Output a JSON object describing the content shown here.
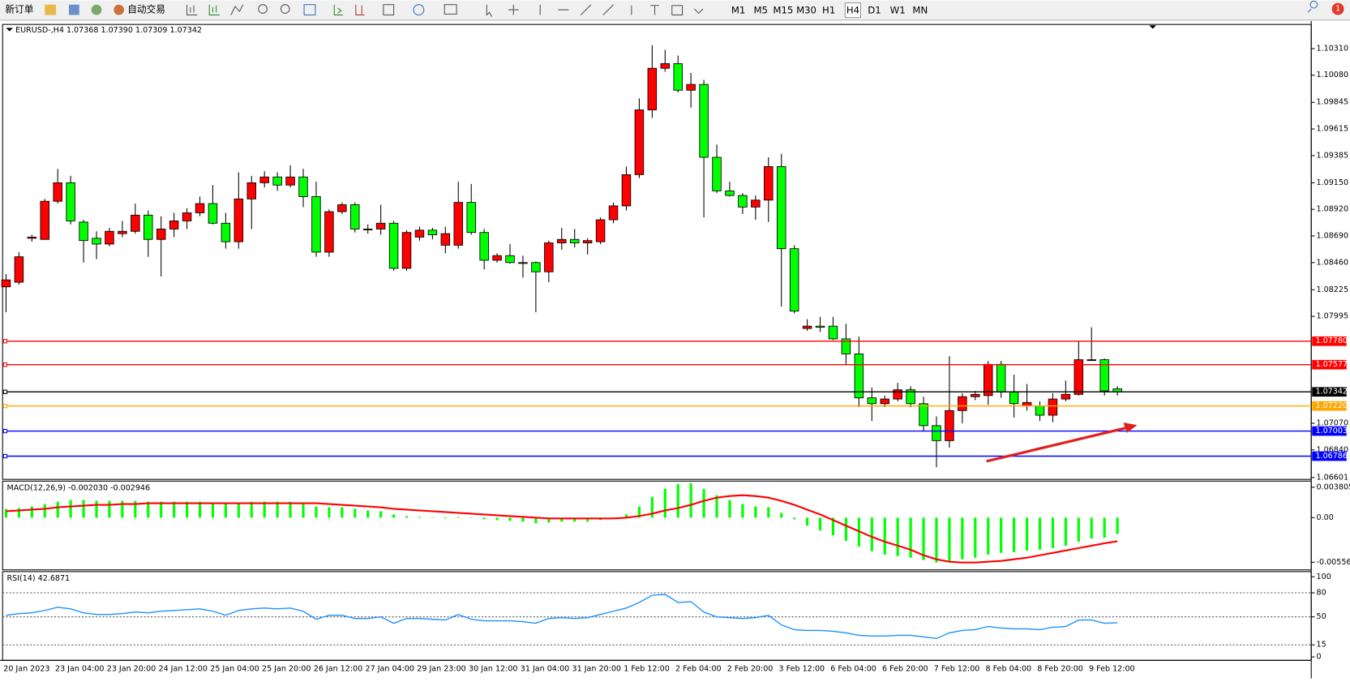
{
  "toolbar": {
    "new_order": "新订单",
    "auto_trade": "自动交易",
    "timeframes": [
      "M1",
      "M5",
      "M15",
      "M30",
      "H1",
      "H4",
      "D1",
      "W1",
      "MN"
    ],
    "active_timeframe": "H4",
    "notifications": "1"
  },
  "chart_data": [
    {
      "type": "candlestick",
      "title": "EURUSD-,H4  1.07368 1.07390 1.07309 1.07342",
      "categories": [
        "20 Jan 2023",
        null,
        null,
        null,
        "23 Jan 04:00",
        null,
        null,
        null,
        "23 Jan 20:00",
        null,
        null,
        null,
        "24 Jan 12:00",
        null,
        null,
        null,
        "25 Jan 04:00",
        null,
        null,
        null,
        "25 Jan 20:00",
        null,
        null,
        null,
        "26 Jan 12:00",
        null,
        null,
        null,
        "27 Jan 04:00",
        null,
        null,
        null,
        "29 Jan 23:00",
        null,
        null,
        null,
        "30 Jan 12:00",
        null,
        null,
        null,
        "31 Jan 04:00",
        null,
        null,
        null,
        "31 Jan 20:00",
        null,
        null,
        null,
        "1 Feb 12:00",
        null,
        null,
        null,
        "2 Feb 04:00",
        null,
        null,
        null,
        "2 Feb 20:00",
        null,
        null,
        null,
        "3 Feb 12:00",
        null,
        null,
        null,
        "6 Feb 04:00",
        null,
        null,
        null,
        "6 Feb 20:00",
        null,
        null,
        null,
        "7 Feb 12:00",
        null,
        null,
        null,
        "8 Feb 04:00",
        null,
        null,
        null,
        "8 Feb 20:00",
        null,
        null,
        null,
        "9 Feb 12:00",
        null,
        null
      ],
      "open": [
        1.0825,
        1.0829,
        1.0867,
        1.0866,
        1.0899,
        1.0915,
        1.0881,
        1.0867,
        1.0862,
        1.0871,
        1.0873,
        1.0887,
        1.0866,
        1.0875,
        1.0882,
        1.0889,
        1.0897,
        1.088,
        1.0864,
        1.0901,
        1.0915,
        1.092,
        1.0913,
        1.092,
        1.0903,
        1.0855,
        1.089,
        1.0896,
        1.0875,
        1.0875,
        1.088,
        1.0841,
        1.0868,
        1.0874,
        1.0861,
        1.0861,
        1.0898,
        1.0872,
        1.0848,
        1.0852,
        1.0846,
        1.0846,
        1.0838,
        1.0863,
        1.0866,
        1.0863,
        1.0864,
        1.0883,
        1.0895,
        1.0922,
        1.0978,
        1.1014,
        1.1018,
        1.0995,
        1.1,
        1.0937,
        1.0908,
        1.0904,
        1.0894,
        1.09,
        1.0929,
        1.0858,
        1.0789,
        1.0791,
        1.0791,
        1.078,
        1.0767,
        1.0729,
        1.0724,
        1.0728,
        1.0736,
        1.0724,
        1.0705,
        1.0692,
        1.0718,
        1.073,
        1.0731,
        1.0758,
        1.0734,
        1.0722,
        1.0722,
        1.0714,
        1.0728,
        1.0732,
        1.0762,
        1.0762,
        1.07368
      ],
      "high": [
        1.0836,
        1.0855,
        1.087,
        1.0901,
        1.0927,
        1.0921,
        1.0883,
        1.0873,
        1.0876,
        1.0882,
        1.0897,
        1.0891,
        1.0886,
        1.0889,
        1.0893,
        1.0903,
        1.0913,
        1.0889,
        1.0924,
        1.0921,
        1.0925,
        1.0924,
        1.093,
        1.0927,
        1.0916,
        1.0892,
        1.0898,
        1.0898,
        1.0879,
        1.0896,
        1.0882,
        1.0874,
        1.0877,
        1.0876,
        1.0877,
        1.0916,
        1.0914,
        1.0875,
        1.0854,
        1.0862,
        1.0852,
        1.0847,
        1.0865,
        1.0876,
        1.0875,
        1.0867,
        1.0885,
        1.0898,
        1.0929,
        1.0988,
        1.1034,
        1.103,
        1.1025,
        1.101,
        1.1004,
        1.0948,
        1.0916,
        1.0906,
        1.0904,
        1.0937,
        1.094,
        1.0861,
        1.0797,
        1.0799,
        1.0799,
        1.0793,
        1.0782,
        1.0738,
        1.0731,
        1.0742,
        1.0739,
        1.073,
        1.0713,
        1.0765,
        1.0733,
        1.0735,
        1.0761,
        1.0761,
        1.0749,
        1.0741,
        1.0726,
        1.0733,
        1.0744,
        1.0778,
        1.079,
        1.0763,
        1.0739
      ],
      "low": [
        1.0803,
        1.0827,
        1.0864,
        1.0866,
        1.0897,
        1.0879,
        1.0846,
        1.0849,
        1.086,
        1.0868,
        1.0871,
        1.0851,
        1.0834,
        1.0868,
        1.0875,
        1.0886,
        1.0879,
        1.0858,
        1.0858,
        1.0875,
        1.0911,
        1.0908,
        1.0911,
        1.0894,
        1.0851,
        1.0851,
        1.0888,
        1.0872,
        1.0871,
        1.087,
        1.0839,
        1.0839,
        1.0865,
        1.0866,
        1.0854,
        1.0858,
        1.087,
        1.084,
        1.0846,
        1.0845,
        1.0833,
        1.0803,
        1.0829,
        1.0857,
        1.0859,
        1.0853,
        1.0862,
        1.088,
        1.0891,
        1.0919,
        1.0971,
        1.1011,
        1.0993,
        1.098,
        1.0885,
        1.0906,
        1.0903,
        1.0888,
        1.0883,
        1.0881,
        1.0808,
        1.0802,
        1.0787,
        1.0786,
        1.0779,
        1.0758,
        1.0721,
        1.0709,
        1.0721,
        1.0726,
        1.0721,
        1.07,
        1.0669,
        1.0686,
        1.0707,
        1.0727,
        1.0723,
        1.0729,
        1.0712,
        1.0718,
        1.0709,
        1.0708,
        1.0726,
        1.0731,
        1.0761,
        1.0731,
        1.07309
      ],
      "close": [
        1.0831,
        1.0851,
        1.0868,
        1.0899,
        1.0915,
        1.0882,
        1.0865,
        1.0862,
        1.0873,
        1.0873,
        1.0887,
        1.0866,
        1.0875,
        1.0882,
        1.0889,
        1.0897,
        1.088,
        1.0864,
        1.0901,
        1.0915,
        1.092,
        1.0913,
        1.092,
        1.0903,
        1.0855,
        1.089,
        1.0896,
        1.0875,
        1.0875,
        1.088,
        1.0841,
        1.0872,
        1.0874,
        1.087,
        1.0871,
        1.0898,
        1.0872,
        1.0848,
        1.0852,
        1.0846,
        1.0846,
        1.0838,
        1.0863,
        1.0866,
        1.0863,
        1.0865,
        1.0883,
        1.0895,
        1.0922,
        1.0978,
        1.1014,
        1.1018,
        1.0995,
        1.1,
        1.0937,
        1.0908,
        1.0904,
        1.0894,
        1.09,
        1.0929,
        1.0858,
        1.0804,
        1.0791,
        1.079,
        1.078,
        1.0767,
        1.0729,
        1.0724,
        1.0728,
        1.0736,
        1.0724,
        1.0705,
        1.0692,
        1.0718,
        1.073,
        1.0732,
        1.0758,
        1.0734,
        1.0724,
        1.0725,
        1.0714,
        1.0728,
        1.0732,
        1.0762,
        1.0762,
        1.0735,
        1.07342
      ],
      "up_color": "#ff0000",
      "down_color": "#00ff00",
      "ylim": [
        1.06585,
        1.10519
      ],
      "yticks": [
        {
          "value": 1.1031,
          "label": "1.10310"
        },
        {
          "value": 1.1008,
          "label": "1.10080"
        },
        1.09845,
        {
          "value": 1.09615,
          "label": "1.09615"
        },
        1.09385,
        {
          "value": 1.0915,
          "label": "1.09150"
        },
        {
          "value": 1.0892,
          "label": "1.08920"
        },
        {
          "value": 1.0869,
          "label": "1.08690"
        },
        {
          "value": 1.0846,
          "label": "1.08460"
        },
        1.08225,
        1.07995,
        {
          "value": 1.0707,
          "label": "1.07070"
        },
        {
          "value": 1.0684,
          "label": "1.06840"
        },
        1.06601
      ],
      "hlines": [
        {
          "value": 1.0778,
          "label": "1.07780",
          "color": "#ff0000"
        },
        {
          "value": 1.07577,
          "label": "1.07577",
          "color": "#ff0000"
        },
        {
          "value": 1.0722,
          "label": "1.07220",
          "color": "#ffa500"
        },
        {
          "value": 1.07003,
          "label": "1.07003",
          "color": "#0000ff"
        },
        {
          "value": 1.06786,
          "label": "1.06786",
          "color": "#0000ff"
        }
      ],
      "current": {
        "value": 1.07342,
        "label": "1.07342",
        "color": "#000000"
      }
    },
    {
      "type": "macd",
      "title": "MACD(12,26,9) -0.002030 -0.002946",
      "series": [
        {
          "color": "#00ff00",
          "values": [
            0.0011,
            0.0012,
            0.0014,
            0.0017,
            0.002,
            0.0022,
            0.0022,
            0.0021,
            0.0021,
            0.0021,
            0.0021,
            0.002,
            0.002,
            0.002,
            0.002,
            0.002,
            0.0019,
            0.0018,
            0.0019,
            0.002,
            0.002,
            0.002,
            0.002,
            0.0019,
            0.0014,
            0.0013,
            0.0013,
            0.0011,
            0.0009,
            0.0008,
            0.0004,
            0.0002,
            0.0001,
            0,
            -0.0001,
            0.0001,
            0,
            -0.0002,
            -0.0003,
            -0.0004,
            -0.0005,
            -0.0007,
            -0.0006,
            -0.0005,
            -0.0005,
            -0.0005,
            -0.0003,
            -0.0001,
            0.0004,
            0.0014,
            0.0026,
            0.0036,
            0.0042,
            0.0043,
            0.0036,
            0.0028,
            0.0022,
            0.0017,
            0.0014,
            0.0013,
            0.0006,
            -0.0002,
            -0.001,
            -0.0016,
            -0.0022,
            -0.0029,
            -0.0036,
            -0.0042,
            -0.0046,
            -0.0048,
            -0.005,
            -0.0053,
            -0.0056,
            -0.0055,
            -0.0052,
            -0.005,
            -0.0046,
            -0.0044,
            -0.0043,
            -0.0041,
            -0.004,
            -0.0038,
            -0.0035,
            -0.003,
            -0.0026,
            -0.0025,
            -0.00203
          ]
        },
        {
          "color": "#ff0000",
          "values": [
            0.0008,
            0.0009,
            0.001,
            0.0011,
            0.0013,
            0.0014,
            0.0015,
            0.0016,
            0.0016,
            0.0017,
            0.0017,
            0.0018,
            0.0018,
            0.0018,
            0.0018,
            0.0018,
            0.0018,
            0.0018,
            0.0018,
            0.0018,
            0.0018,
            0.0018,
            0.0018,
            0.0018,
            0.0018,
            0.0017,
            0.0016,
            0.0015,
            0.0014,
            0.0013,
            0.0011,
            0.001,
            0.0009,
            0.0008,
            0.0007,
            0.0006,
            0.0005,
            0.0004,
            0.0003,
            0.0002,
            0.0001,
            0,
            -0.0001,
            -0.0001,
            -0.0001,
            -0.0001,
            -0.0001,
            -0.0001,
            0,
            0.0002,
            0.0005,
            0.0009,
            0.0012,
            0.0016,
            0.0021,
            0.0025,
            0.0027,
            0.0028,
            0.0027,
            0.0025,
            0.0021,
            0.0016,
            0.001,
            0.0004,
            -0.0003,
            -0.001,
            -0.0017,
            -0.0024,
            -0.003,
            -0.0035,
            -0.004,
            -0.0047,
            -0.0052,
            -0.0055,
            -0.0056,
            -0.0056,
            -0.0055,
            -0.0054,
            -0.0052,
            -0.005,
            -0.0047,
            -0.0044,
            -0.0041,
            -0.0038,
            -0.0035,
            -0.0032,
            -0.002946
          ]
        }
      ],
      "ylim": [
        -0.00652,
        0.004565
      ],
      "yticks": [
        0.003805,
        {
          "value": 0,
          "label": "0.00"
        },
        -0.005569
      ]
    },
    {
      "type": "line",
      "title": "RSI(14) 42.6871",
      "color": "#1e90ff",
      "values": [
        52,
        54,
        55,
        58,
        62,
        60,
        55,
        53,
        53,
        54,
        56,
        55,
        57,
        58,
        59,
        60,
        57,
        52,
        58,
        60,
        61,
        60,
        61,
        57,
        47,
        52,
        52,
        48,
        48,
        50,
        42,
        48,
        48,
        47,
        46,
        53,
        47,
        45,
        45,
        45,
        44,
        42,
        48,
        49,
        48,
        49,
        53,
        57,
        61,
        68,
        77,
        78,
        68,
        69,
        56,
        50,
        49,
        48,
        49,
        52,
        40,
        34,
        33,
        33,
        32,
        30,
        27,
        26,
        26,
        27,
        27,
        25,
        23,
        30,
        33,
        34,
        38,
        36,
        35,
        35,
        34,
        37,
        38,
        46,
        46,
        42,
        42.6871
      ],
      "ylim": [
        -4.3,
        106.5
      ],
      "yticks": [
        100,
        80,
        50,
        15,
        0
      ],
      "levels": [
        80,
        50,
        15
      ]
    }
  ]
}
